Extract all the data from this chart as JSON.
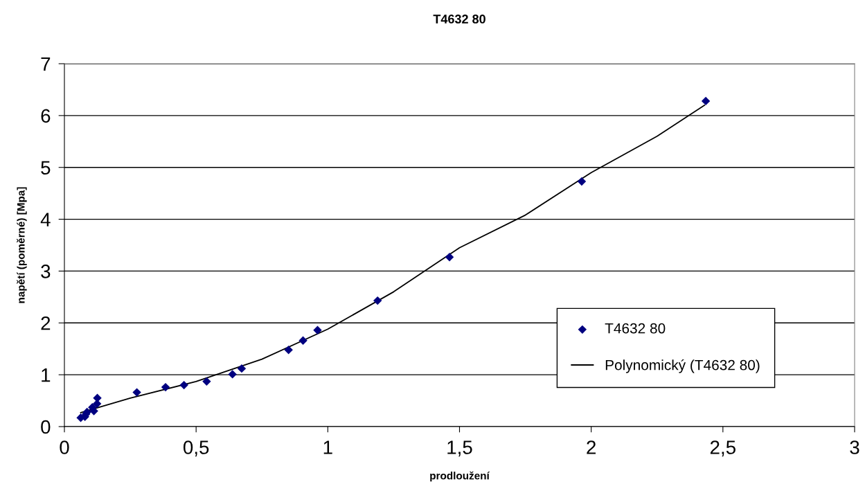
{
  "chart_data": {
    "type": "scatter",
    "title": "T4632 80",
    "xlabel": "prodloužení",
    "ylabel": "napětí (poměrné) [Mpa]",
    "xlim": [
      0,
      3
    ],
    "ylim": [
      0,
      7
    ],
    "xticks": [
      0,
      {
        "value": 0.5,
        "label": "0,5"
      },
      1,
      {
        "value": 1.5,
        "label": "1,5"
      },
      2,
      {
        "value": 2.5,
        "label": "2,5"
      },
      3
    ],
    "yticks": [
      0,
      1,
      2,
      3,
      4,
      5,
      6,
      7
    ],
    "grid": "y",
    "legend": "bottom right",
    "series": [
      {
        "name": "T4632 80",
        "marker": "diamond",
        "color": "#000080",
        "x": [
          0.062,
          0.078,
          0.082,
          0.086,
          0.106,
          0.112,
          0.124,
          0.125,
          0.275,
          0.384,
          0.454,
          0.54,
          0.638,
          0.673,
          0.851,
          0.906,
          0.961,
          1.189,
          1.462,
          1.964,
          2.435
        ],
        "values": [
          0.17,
          0.19,
          0.24,
          0.28,
          0.37,
          0.3,
          0.44,
          0.55,
          0.66,
          0.76,
          0.8,
          0.87,
          1.01,
          1.12,
          1.48,
          1.66,
          1.86,
          2.43,
          3.27,
          4.73,
          6.28
        ]
      },
      {
        "name": "Polynomický (T4632 80)",
        "type": "line",
        "marker": "none",
        "line_style": "solid",
        "color": "#000000",
        "x": [
          0.062,
          0.25,
          0.5,
          0.75,
          1.0,
          1.25,
          1.5,
          1.75,
          2.0,
          2.25,
          2.43
        ],
        "values": [
          0.27,
          0.55,
          0.87,
          1.3,
          1.88,
          2.6,
          3.45,
          4.08,
          4.9,
          5.6,
          6.2
        ]
      }
    ]
  }
}
